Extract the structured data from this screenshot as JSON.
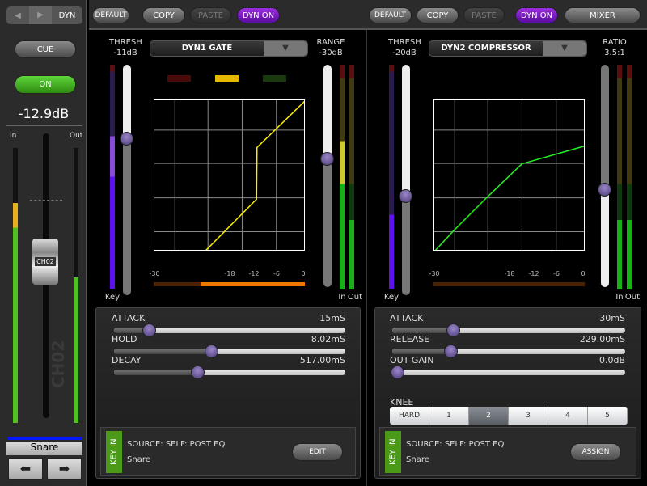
{
  "strip": {
    "nav_label": "DYN",
    "cue": "CUE",
    "on": "ON",
    "level": "-12.9dB",
    "in": "In",
    "out": "Out",
    "fader_label": "CH02",
    "channel_watermark": "CH02",
    "name": "Snare",
    "in_meter": 0.55,
    "out_meter": 0.55,
    "fader": 0.6
  },
  "toolbar": {
    "left": {
      "default": "DEFAULT",
      "copy": "COPY",
      "paste": "PASTE",
      "dyn_on": "DYN ON"
    },
    "right": {
      "default": "DEFAULT",
      "copy": "COPY",
      "paste": "PASTE",
      "dyn_on": "DYN ON",
      "mixer": "MIXER"
    }
  },
  "dyn1": {
    "thresh_label": "THRESH",
    "thresh": "-11dB",
    "type": "DYN1 GATE",
    "range_label": "RANGE",
    "range": "-30dB",
    "key": "Key",
    "in": "In",
    "out": "Out",
    "scale": [
      "-30",
      "-18",
      "-12",
      "-6",
      "0"
    ],
    "curve": [
      [
        0.336,
        0
      ],
      [
        0.677,
        0.344
      ],
      [
        0.68,
        0.69
      ],
      [
        1,
        1
      ]
    ],
    "params": [
      {
        "label": "ATTACK",
        "value": "15mS",
        "pos": 0.15
      },
      {
        "label": "HOLD",
        "value": "8.02mS",
        "pos": 0.42
      },
      {
        "label": "DECAY",
        "value": "517.00mS",
        "pos": 0.36
      }
    ],
    "key_in": "KEY IN",
    "source": "SOURCE:  SELF: POST EQ",
    "source_name": "Snare",
    "button": "EDIT",
    "curve_color": "#ffee00"
  },
  "dyn2": {
    "thresh_label": "THRESH",
    "thresh": "-20dB",
    "type": "DYN2 COMPRESSOR",
    "ratio_label": "RATIO",
    "ratio": "3.5:1",
    "key": "Key",
    "in": "In",
    "out": "Out",
    "scale": [
      "-30",
      "-18",
      "-12",
      "-6",
      "0"
    ],
    "curve": [
      [
        0,
        0
      ],
      [
        0.12,
        0.13
      ],
      [
        0.35,
        0.36
      ],
      [
        0.58,
        0.58
      ],
      [
        1,
        0.7
      ]
    ],
    "params": [
      {
        "label": "ATTACK",
        "value": "30mS",
        "pos": 0.26
      },
      {
        "label": "RELEASE",
        "value": "229.00mS",
        "pos": 0.25
      },
      {
        "label": "OUT GAIN",
        "value": "0.0dB",
        "pos": 0.02
      }
    ],
    "knee_label": "KNEE",
    "knee": [
      "HARD",
      "1",
      "2",
      "3",
      "4",
      "5"
    ],
    "knee_selected": "2",
    "key_in": "KEY IN",
    "source": "SOURCE:  SELF: POST EQ",
    "source_name": "Snare",
    "button": "ASSIGN",
    "curve_color": "#22ee22"
  }
}
